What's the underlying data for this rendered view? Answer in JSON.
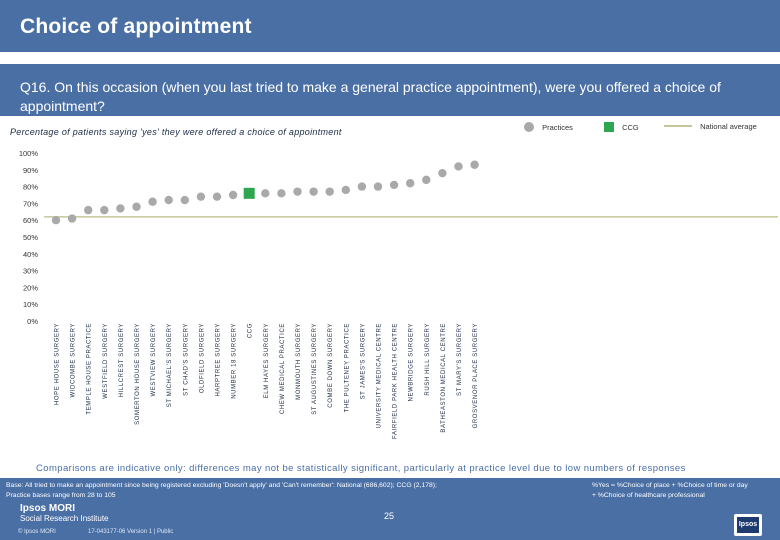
{
  "header": {
    "title": "Choice of appointment"
  },
  "question": {
    "text": "Q16. On this occasion (when you last tried to make a general practice appointment), were you offered a choice of appointment?"
  },
  "subtitle": "Percentage of patients saying 'yes' they were offered a choice of appointment",
  "legend": {
    "practices": "Practices",
    "ccg": "CCG",
    "national": "National average"
  },
  "colors": {
    "practice": "#a9a9a9",
    "ccg": "#2ea54f",
    "national": "#c6c69a",
    "brand": "#4a6fa5"
  },
  "chart_data": {
    "type": "scatter",
    "title": "Percentage of patients saying 'yes' they were offered a choice of appointment",
    "categories": [
      "HOPE HOUSE SURGERY",
      "WIDCOMBE SURGERY",
      "TEMPLE HOUSE PRACTICE",
      "WESTFIELD SURGERY",
      "HILLCREST SURGERY",
      "SOMERTON HOUSE SURGERY",
      "WESTVIEW SURGERY",
      "ST MICHAEL'S SURGERY",
      "ST CHAD'S SURGERY",
      "OLDFIELD SURGERY",
      "HARPTREE SURGERY",
      "NUMBER 18 SURGERY",
      "CCG",
      "ELM HAYES SURGERY",
      "CHEW MEDICAL PRACTICE",
      "MONMOUTH SURGERY",
      "ST AUGUSTINES SURGERY",
      "COMBE DOWN SURGERY",
      "THE PULTENEY PRACTICE",
      "ST JAMES'S SURGERY",
      "UNIVERSITY MEDICAL CENTRE",
      "FAIRFIELD PARK HEALTH CENTRE",
      "NEWBRIDGE SURGERY",
      "RUSH HILL SURGERY",
      "BATHEASTON MEDICAL CENTRE",
      "ST MARY'S SURGERY",
      "GROSVENOR PLACE SURGERY"
    ],
    "values": [
      60,
      61,
      66,
      66,
      67,
      68,
      71,
      72,
      72,
      74,
      74,
      75,
      76,
      76,
      76,
      77,
      77,
      77,
      78,
      80,
      80,
      81,
      82,
      84,
      88,
      92,
      93
    ],
    "highlight_category": "CCG",
    "national_average": 62,
    "ylim": [
      0,
      100
    ],
    "yticks": [
      0,
      10,
      20,
      30,
      40,
      50,
      60,
      70,
      80,
      90,
      100
    ],
    "ytick_labels": [
      "0%",
      "10%",
      "20%",
      "30%",
      "40%",
      "50%",
      "60%",
      "70%",
      "80%",
      "90%",
      "100%"
    ],
    "xlabel": "",
    "ylabel": "",
    "grid": false
  },
  "note": "Comparisons are indicative only: differences may not be statistically significant, particularly at practice level due to low numbers of responses",
  "footer": {
    "base_line1": "Base: All tried to make an appointment since being registered excluding 'Doesn't apply' and 'Can't remember': National (686,602); CCG (2,178);",
    "base_line2": "Practice bases range from 28 to 105",
    "yes_def_line1": "%Yes = %Choice of place + %Choice of time or day",
    "yes_def_line2": "+ %Choice of healthcare professional",
    "org_name": "Ipsos MORI",
    "org_sub": "Social Research Institute",
    "copyright": "© Ipsos MORI",
    "version": "17-043177-06 Version 1 | Public",
    "page": "25",
    "logo_text": "Ipsos"
  }
}
